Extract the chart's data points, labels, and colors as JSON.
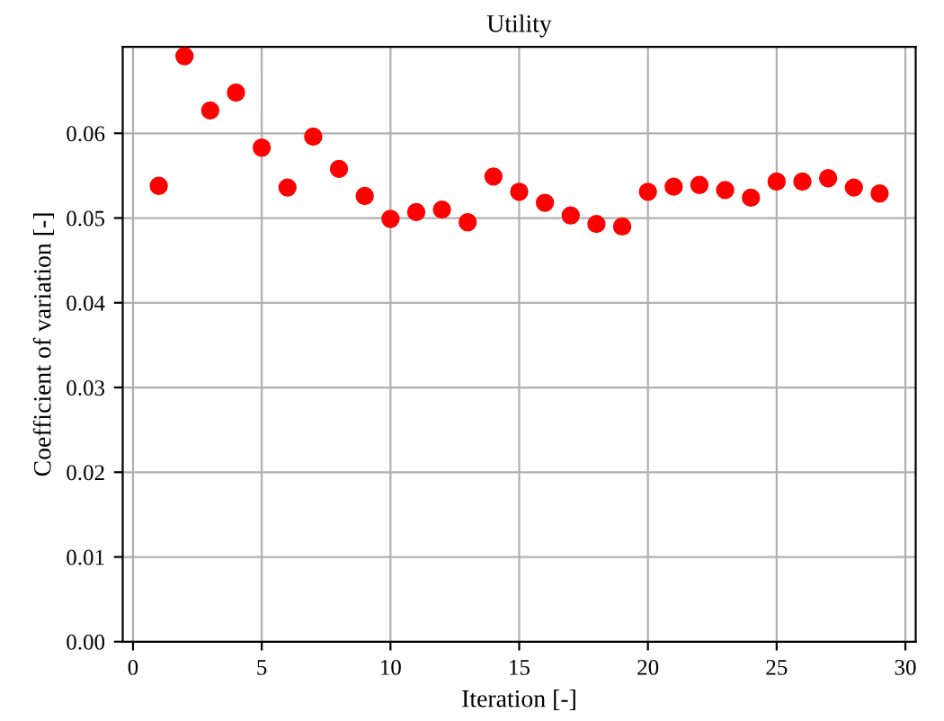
{
  "chart_data": {
    "type": "scatter",
    "title": "Utility",
    "xlabel": "Iteration [-]",
    "ylabel": "Coefficient of variation [-]",
    "x": [
      1,
      2,
      3,
      4,
      5,
      6,
      7,
      8,
      9,
      10,
      11,
      12,
      13,
      14,
      15,
      16,
      17,
      18,
      19,
      20,
      21,
      22,
      23,
      24,
      25,
      26,
      27,
      28,
      29
    ],
    "series": [
      {
        "color": "#ff0000",
        "values": [
          0.0538,
          0.0691,
          0.0627,
          0.0648,
          0.0583,
          0.0536,
          0.0596,
          0.0558,
          0.0526,
          0.0499,
          0.0507,
          0.051,
          0.0495,
          0.0549,
          0.0531,
          0.0518,
          0.0503,
          0.0493,
          0.049,
          0.0531,
          0.0537,
          0.0539,
          0.0533,
          0.0524,
          0.0543,
          0.0543,
          0.0547,
          0.0536,
          0.0529
        ]
      }
    ],
    "xlim": [
      -0.4,
      30.4
    ],
    "xticks": [
      0,
      5,
      10,
      15,
      20,
      25,
      30
    ],
    "ylim": [
      0,
      0.0702
    ],
    "yticks": [
      {
        "value": 0,
        "label": "0.00"
      },
      0.01,
      0.02,
      0.03,
      0.04,
      0.05,
      0.06
    ],
    "grid": true,
    "marker": "circle"
  }
}
